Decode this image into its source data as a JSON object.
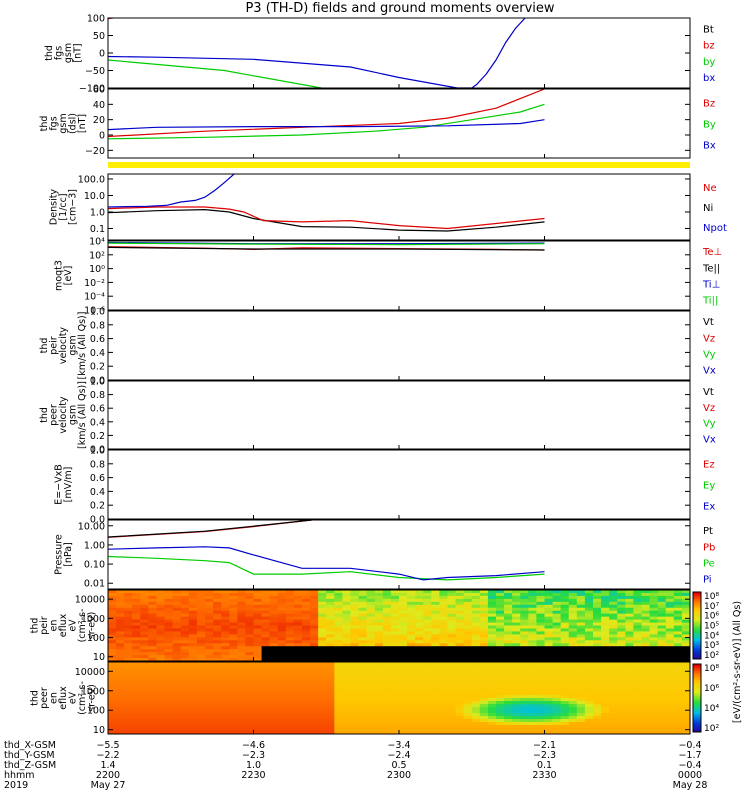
{
  "title": "P3 (TH-D) fields and ground moments overview",
  "colors": {
    "black": "#000000",
    "red": "#dd0000",
    "green": "#00cc00",
    "blue": "#0000cc",
    "yellow": "#ffee00"
  },
  "chart_data": [
    {
      "id": "fgs_gsm",
      "type": "line",
      "ylabel": [
        "thd",
        "fgs",
        "gsm",
        "[nT]"
      ],
      "ylim": [
        -100,
        100
      ],
      "yscale": "linear",
      "yticks": [
        "100",
        "50",
        "0",
        "−50",
        "−100"
      ],
      "legend": [
        {
          "label": "Bt",
          "color": "#000000"
        },
        {
          "label": "bz",
          "color": "#dd0000"
        },
        {
          "label": "by",
          "color": "#00cc00"
        },
        {
          "label": "bx",
          "color": "#0000cc"
        }
      ],
      "series": [
        {
          "name": "bx",
          "color": "#0000cc",
          "x": [
            0,
            10,
            30,
            50,
            60,
            72,
            75,
            76,
            78,
            80,
            82,
            84,
            86
          ],
          "y": [
            -10,
            -12,
            -18,
            -40,
            -70,
            -100,
            -100,
            -90,
            -60,
            -20,
            30,
            70,
            100
          ]
        },
        {
          "name": "by",
          "color": "#00cc00",
          "x": [
            0,
            8,
            16,
            24,
            30,
            40,
            44
          ],
          "y": [
            -20,
            -30,
            -40,
            -50,
            -65,
            -90,
            -100
          ]
        },
        {
          "name": "bz",
          "color": "#dd0000",
          "x": [
            0,
            1
          ],
          "y": [
            98,
            100
          ]
        }
      ]
    },
    {
      "id": "fgs_gse",
      "type": "line",
      "ylabel": [
        "thd",
        "fgs",
        "gsm",
        "(dsl)",
        "[nT]"
      ],
      "ylim": [
        -30,
        60
      ],
      "yscale": "linear",
      "yticks": [
        "60",
        "40",
        "20",
        "0",
        "−20"
      ],
      "legend": [
        {
          "label": "Bz",
          "color": "#dd0000"
        },
        {
          "label": "By",
          "color": "#00cc00"
        },
        {
          "label": "Bx",
          "color": "#0000cc"
        }
      ],
      "series": [
        {
          "name": "Bz",
          "color": "#dd0000",
          "x": [
            0,
            20,
            40,
            60,
            70,
            80,
            90
          ],
          "y": [
            -2,
            5,
            10,
            15,
            22,
            35,
            60
          ]
        },
        {
          "name": "By",
          "color": "#00cc00",
          "x": [
            0,
            20,
            40,
            55,
            65,
            75,
            85,
            90
          ],
          "y": [
            -5,
            -3,
            0,
            5,
            10,
            20,
            30,
            40
          ]
        },
        {
          "name": "Bx",
          "color": "#0000cc",
          "x": [
            0,
            10,
            30,
            50,
            70,
            85,
            90
          ],
          "y": [
            7,
            10,
            11,
            11,
            12,
            15,
            20
          ]
        }
      ]
    },
    {
      "id": "density",
      "type": "line",
      "ylabel": [
        "Density",
        "[1/cc]",
        "[cm−3]"
      ],
      "ylim": [
        0.02,
        200
      ],
      "yscale": "log",
      "yticks": [
        "100.0",
        "10.0",
        "1.0",
        "0.1"
      ],
      "legend": [
        {
          "label": "Ne",
          "color": "#dd0000"
        },
        {
          "label": "Ni",
          "color": "#000000"
        },
        {
          "label": "Npot",
          "color": "#0000cc"
        }
      ],
      "series": [
        {
          "name": "Ni",
          "color": "#000000",
          "x": [
            0,
            10,
            20,
            25,
            30,
            40,
            50,
            60,
            70,
            80,
            90
          ],
          "y": [
            0.9,
            1.2,
            1.4,
            1.0,
            0.4,
            0.13,
            0.12,
            0.08,
            0.07,
            0.12,
            0.25
          ]
        },
        {
          "name": "Ne",
          "color": "#dd0000",
          "x": [
            0,
            10,
            20,
            25,
            28,
            32,
            40,
            50,
            60,
            70,
            80,
            90
          ],
          "y": [
            1.6,
            2.0,
            2.0,
            1.5,
            1.0,
            0.3,
            0.25,
            0.3,
            0.15,
            0.1,
            0.2,
            0.4
          ]
        },
        {
          "name": "Npot",
          "color": "#0000cc",
          "x": [
            0,
            8,
            12,
            15,
            18,
            20,
            22,
            24,
            26
          ],
          "y": [
            2.0,
            2.2,
            2.5,
            4.0,
            5.0,
            8.0,
            20.0,
            60.0,
            200
          ]
        }
      ]
    },
    {
      "id": "moqt3",
      "type": "line",
      "ylabel": [
        "moqt3",
        "[eV]"
      ],
      "ylim": [
        1e-06,
        10000
      ],
      "yscale": "log",
      "yticks": [
        "10⁴",
        "10²",
        "10⁰",
        "10⁻²",
        "10⁻⁴",
        "10⁻⁶"
      ],
      "legend": [
        {
          "label": "Te⊥",
          "color": "#dd0000"
        },
        {
          "label": "Te||",
          "color": "#000000"
        },
        {
          "label": "Ti⊥",
          "color": "#0000cc"
        },
        {
          "label": "Ti||",
          "color": "#00cc00"
        }
      ],
      "series": [
        {
          "name": "Ti⊥",
          "color": "#0000cc",
          "x": [
            0,
            30,
            60,
            90
          ],
          "y": [
            6000,
            4000,
            4000,
            5000
          ]
        },
        {
          "name": "Ti||",
          "color": "#00cc00",
          "x": [
            0,
            30,
            60,
            90
          ],
          "y": [
            5000,
            3500,
            3000,
            4000
          ]
        },
        {
          "name": "Te⊥",
          "color": "#dd0000",
          "x": [
            0,
            20,
            30,
            40,
            60,
            80,
            90
          ],
          "y": [
            1500,
            900,
            600,
            1000,
            800,
            600,
            500
          ]
        },
        {
          "name": "Te||",
          "color": "#000000",
          "x": [
            0,
            30,
            60,
            90
          ],
          "y": [
            1200,
            700,
            700,
            500
          ]
        }
      ]
    },
    {
      "id": "peir_velocity",
      "type": "line",
      "ylabel": [
        "thd",
        "peir",
        "velocity",
        "gsm",
        "[km/s (All Qs)]"
      ],
      "ylim": [
        0,
        1
      ],
      "yscale": "linear",
      "yticks": [
        "1.0",
        "0.8",
        "0.6",
        "0.4",
        "0.2",
        "0.0"
      ],
      "legend": [
        {
          "label": "Vt",
          "color": "#000000"
        },
        {
          "label": "Vz",
          "color": "#dd0000"
        },
        {
          "label": "Vy",
          "color": "#00cc00"
        },
        {
          "label": "Vx",
          "color": "#0000cc"
        }
      ],
      "series": []
    },
    {
      "id": "peer_velocity",
      "type": "line",
      "ylabel": [
        "thd",
        "peer",
        "velocity",
        "gsm",
        "[km/s (All Qs)]"
      ],
      "ylim": [
        0,
        1
      ],
      "yscale": "linear",
      "yticks": [
        "1.0",
        "0.8",
        "0.6",
        "0.4",
        "0.2",
        "0.0"
      ],
      "legend": [
        {
          "label": "Vt",
          "color": "#000000"
        },
        {
          "label": "Vz",
          "color": "#dd0000"
        },
        {
          "label": "Vy",
          "color": "#00cc00"
        },
        {
          "label": "Vx",
          "color": "#0000cc"
        }
      ],
      "series": []
    },
    {
      "id": "efield",
      "type": "line",
      "ylabel": [
        "E=−VxB",
        "[mV/m]"
      ],
      "ylim": [
        0,
        1
      ],
      "yscale": "linear",
      "yticks": [
        "1.0",
        "0.8",
        "0.6",
        "0.4",
        "0.2",
        "0.0"
      ],
      "legend": [
        {
          "label": "Ez",
          "color": "#dd0000"
        },
        {
          "label": "Ey",
          "color": "#00cc00"
        },
        {
          "label": "Ex",
          "color": "#0000cc"
        }
      ],
      "series": []
    },
    {
      "id": "pressure",
      "type": "line",
      "ylabel": [
        "Pressure",
        "[nPa]"
      ],
      "ylim": [
        0.005,
        20
      ],
      "yscale": "log",
      "yticks": [
        "10.00",
        "1.00",
        "0.10",
        "0.01"
      ],
      "legend": [
        {
          "label": "Pt",
          "color": "#000000"
        },
        {
          "label": "Pb",
          "color": "#dd0000"
        },
        {
          "label": "Pe",
          "color": "#00cc00"
        },
        {
          "label": "Pi",
          "color": "#0000cc"
        }
      ],
      "series": [
        {
          "name": "Pb",
          "color": "#dd0000",
          "x": [
            0,
            20,
            30,
            42
          ],
          "y": [
            2.5,
            5.0,
            9.0,
            20
          ]
        },
        {
          "name": "Pt",
          "color": "#000000",
          "x": [
            0,
            20,
            30,
            42
          ],
          "y": [
            2.6,
            5.2,
            9.5,
            20
          ]
        },
        {
          "name": "Pe",
          "color": "#00cc00",
          "x": [
            0,
            10,
            20,
            25,
            30,
            40,
            50,
            60,
            70,
            80,
            90
          ],
          "y": [
            0.25,
            0.2,
            0.15,
            0.12,
            0.03,
            0.03,
            0.04,
            0.02,
            0.015,
            0.02,
            0.03
          ]
        },
        {
          "name": "Pi",
          "color": "#0000cc",
          "x": [
            0,
            10,
            20,
            25,
            30,
            40,
            50,
            60,
            65,
            70,
            80,
            90
          ],
          "y": [
            0.6,
            0.7,
            0.8,
            0.7,
            0.3,
            0.06,
            0.06,
            0.03,
            0.015,
            0.02,
            0.025,
            0.04
          ]
        }
      ]
    },
    {
      "id": "peir_en_eflux",
      "type": "heatmap",
      "ylabel": [
        "thd",
        "peir",
        "en",
        "eflux",
        "eV",
        "(cm²-s-",
        "sr-eV)"
      ],
      "ylim": [
        6,
        30000
      ],
      "yscale": "log",
      "yticks": [
        "10000",
        "1000",
        "100",
        "10"
      ]
    },
    {
      "id": "peer_en_eflux",
      "type": "heatmap",
      "ylabel": [
        "thd",
        "peer",
        "en",
        "eflux",
        "eV",
        "(cm²-s-",
        "sr-eV)"
      ],
      "ylim": [
        6,
        30000
      ],
      "yscale": "log",
      "yticks": [
        "10000",
        "1000",
        "100",
        "10"
      ]
    }
  ],
  "colorbar": {
    "label": "[eV/(cm²-s-sr-eV)] (All Qs)",
    "ticks_upper": [
      "10⁸",
      "10⁷",
      "10⁶",
      "10⁵",
      "10⁴",
      "10³",
      "10²"
    ],
    "ticks_lower": [
      "10⁸",
      "10⁶",
      "10⁴",
      "10²"
    ]
  },
  "x_axis": {
    "xlim": [
      0,
      120
    ],
    "ticks": [
      0,
      30,
      60,
      90,
      120
    ],
    "rows": [
      {
        "label": "thd_X-GSM",
        "values": [
          "−5.5",
          "−4.6",
          "−3.4",
          "−2.1",
          "−0.4"
        ]
      },
      {
        "label": "thd_Y-GSM",
        "values": [
          "−2.2",
          "−2.3",
          "−2.4",
          "−2.3",
          "−1.7"
        ]
      },
      {
        "label": "thd_Z-GSM",
        "values": [
          "1.4",
          "1.0",
          "0.5",
          "0.1",
          "−0.4"
        ]
      },
      {
        "label": "hhmm",
        "values": [
          "2200",
          "2230",
          "2300",
          "2330",
          "0000"
        ]
      }
    ],
    "year": "2019",
    "date_start": "May 27",
    "date_end": "May 28"
  }
}
